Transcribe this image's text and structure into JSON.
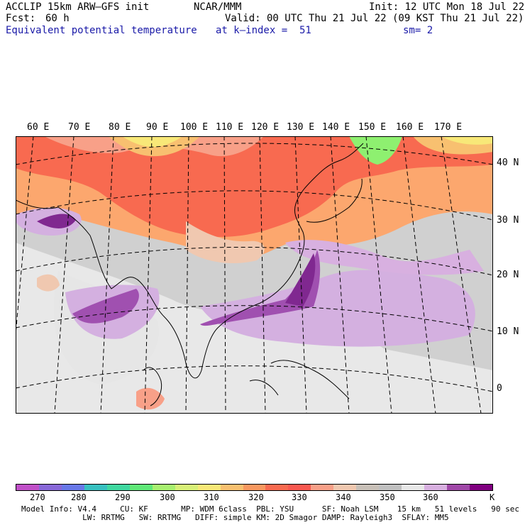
{
  "header": {
    "model": "ACCLIP 15km ARW–GFS init",
    "center": "NCAR/MMM",
    "init": "Init: 12 UTC Mon 18 Jul 22",
    "fcst_label": "Fcst:",
    "fcst_value": "60 h",
    "valid": "Valid: 00 UTC Thu 21 Jul 22 (09 KST Thu 21 Jul 22)",
    "field": "Equivalent potential temperature",
    "level": "at k–index =  51",
    "smooth": "sm= 2"
  },
  "map": {
    "lon_labels": [
      "60 E",
      "70 E",
      "80 E",
      "90 E",
      "100 E",
      "110 E",
      "120 E",
      "130 E",
      "140 E",
      "150 E",
      "160 E",
      "170 E"
    ],
    "lat_labels": [
      "40 N",
      "30 N",
      "20 N",
      "10 N",
      "0"
    ],
    "colors": {
      "ocean_grey": "#d0d0d0",
      "land_light": "#e8e8e8",
      "warm_red": "#f86a50",
      "warm_orange": "#fca76e",
      "warm_yellow": "#f8e878",
      "green": "#8ef070",
      "purple_light": "#d4b0e0",
      "purple_mid": "#a050b0",
      "purple_dark": "#802890"
    }
  },
  "colorbar": {
    "unit": "K",
    "labels": [
      "270",
      "280",
      "290",
      "300",
      "310",
      "320",
      "330",
      "340",
      "350",
      "360"
    ],
    "colors": [
      "#c050c8",
      "#8868d8",
      "#6878e8",
      "#38c0c0",
      "#40d8a0",
      "#60e878",
      "#a8f070",
      "#d8f078",
      "#f8e878",
      "#f8c070",
      "#f89860",
      "#f86a50",
      "#f85850",
      "#f8a088",
      "#f0c8b0",
      "#c8c0b8",
      "#c0c0c0",
      "#e8e8e8",
      "#d8b0e0",
      "#a048a8",
      "#800080"
    ]
  },
  "footer": {
    "line1": "Model Info: V4.4     CU: KF       MP: WDM 6class  PBL: YSU      SF: Noah LSM    15 km   51 levels   90 sec",
    "line2": "             LW: RRTMG   SW: RRTMG   DIFF: simple KM: 2D Smagor DAMP: Rayleigh3  SFLAY: MM5"
  }
}
